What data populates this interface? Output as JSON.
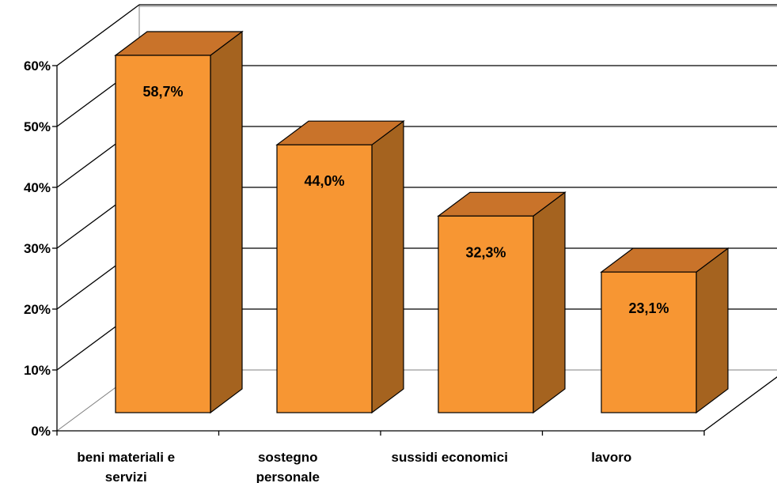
{
  "chart_data": {
    "type": "bar",
    "categories": [
      "beni materiali e servizi",
      "sostegno personale",
      "sussidi economici",
      "lavoro"
    ],
    "category_label_lines": [
      [
        "beni materiali e",
        "servizi"
      ],
      [
        "sostegno",
        "personale"
      ],
      [
        "sussidi economici"
      ],
      [
        "lavoro"
      ]
    ],
    "values": [
      58.7,
      44.0,
      32.3,
      23.1
    ],
    "data_labels": [
      "58,7%",
      "44,0%",
      "32,3%",
      "23,1%"
    ],
    "y_ticks": [
      0,
      10,
      20,
      30,
      40,
      50,
      60
    ],
    "y_tick_labels": [
      "0%",
      "10%",
      "20%",
      "30%",
      "40%",
      "50%",
      "60%"
    ],
    "ylim": [
      0,
      60
    ],
    "grid": true,
    "legend": false,
    "three_d": true,
    "title": "",
    "xlabel": "",
    "ylabel": "",
    "colors": {
      "bar_front": "#F79633",
      "bar_top": "#C9732A",
      "bar_side": "#A5631F",
      "outline": "#000000",
      "grid": "#000000",
      "wall": "#ffffff",
      "wall_edge": "#808080"
    }
  }
}
